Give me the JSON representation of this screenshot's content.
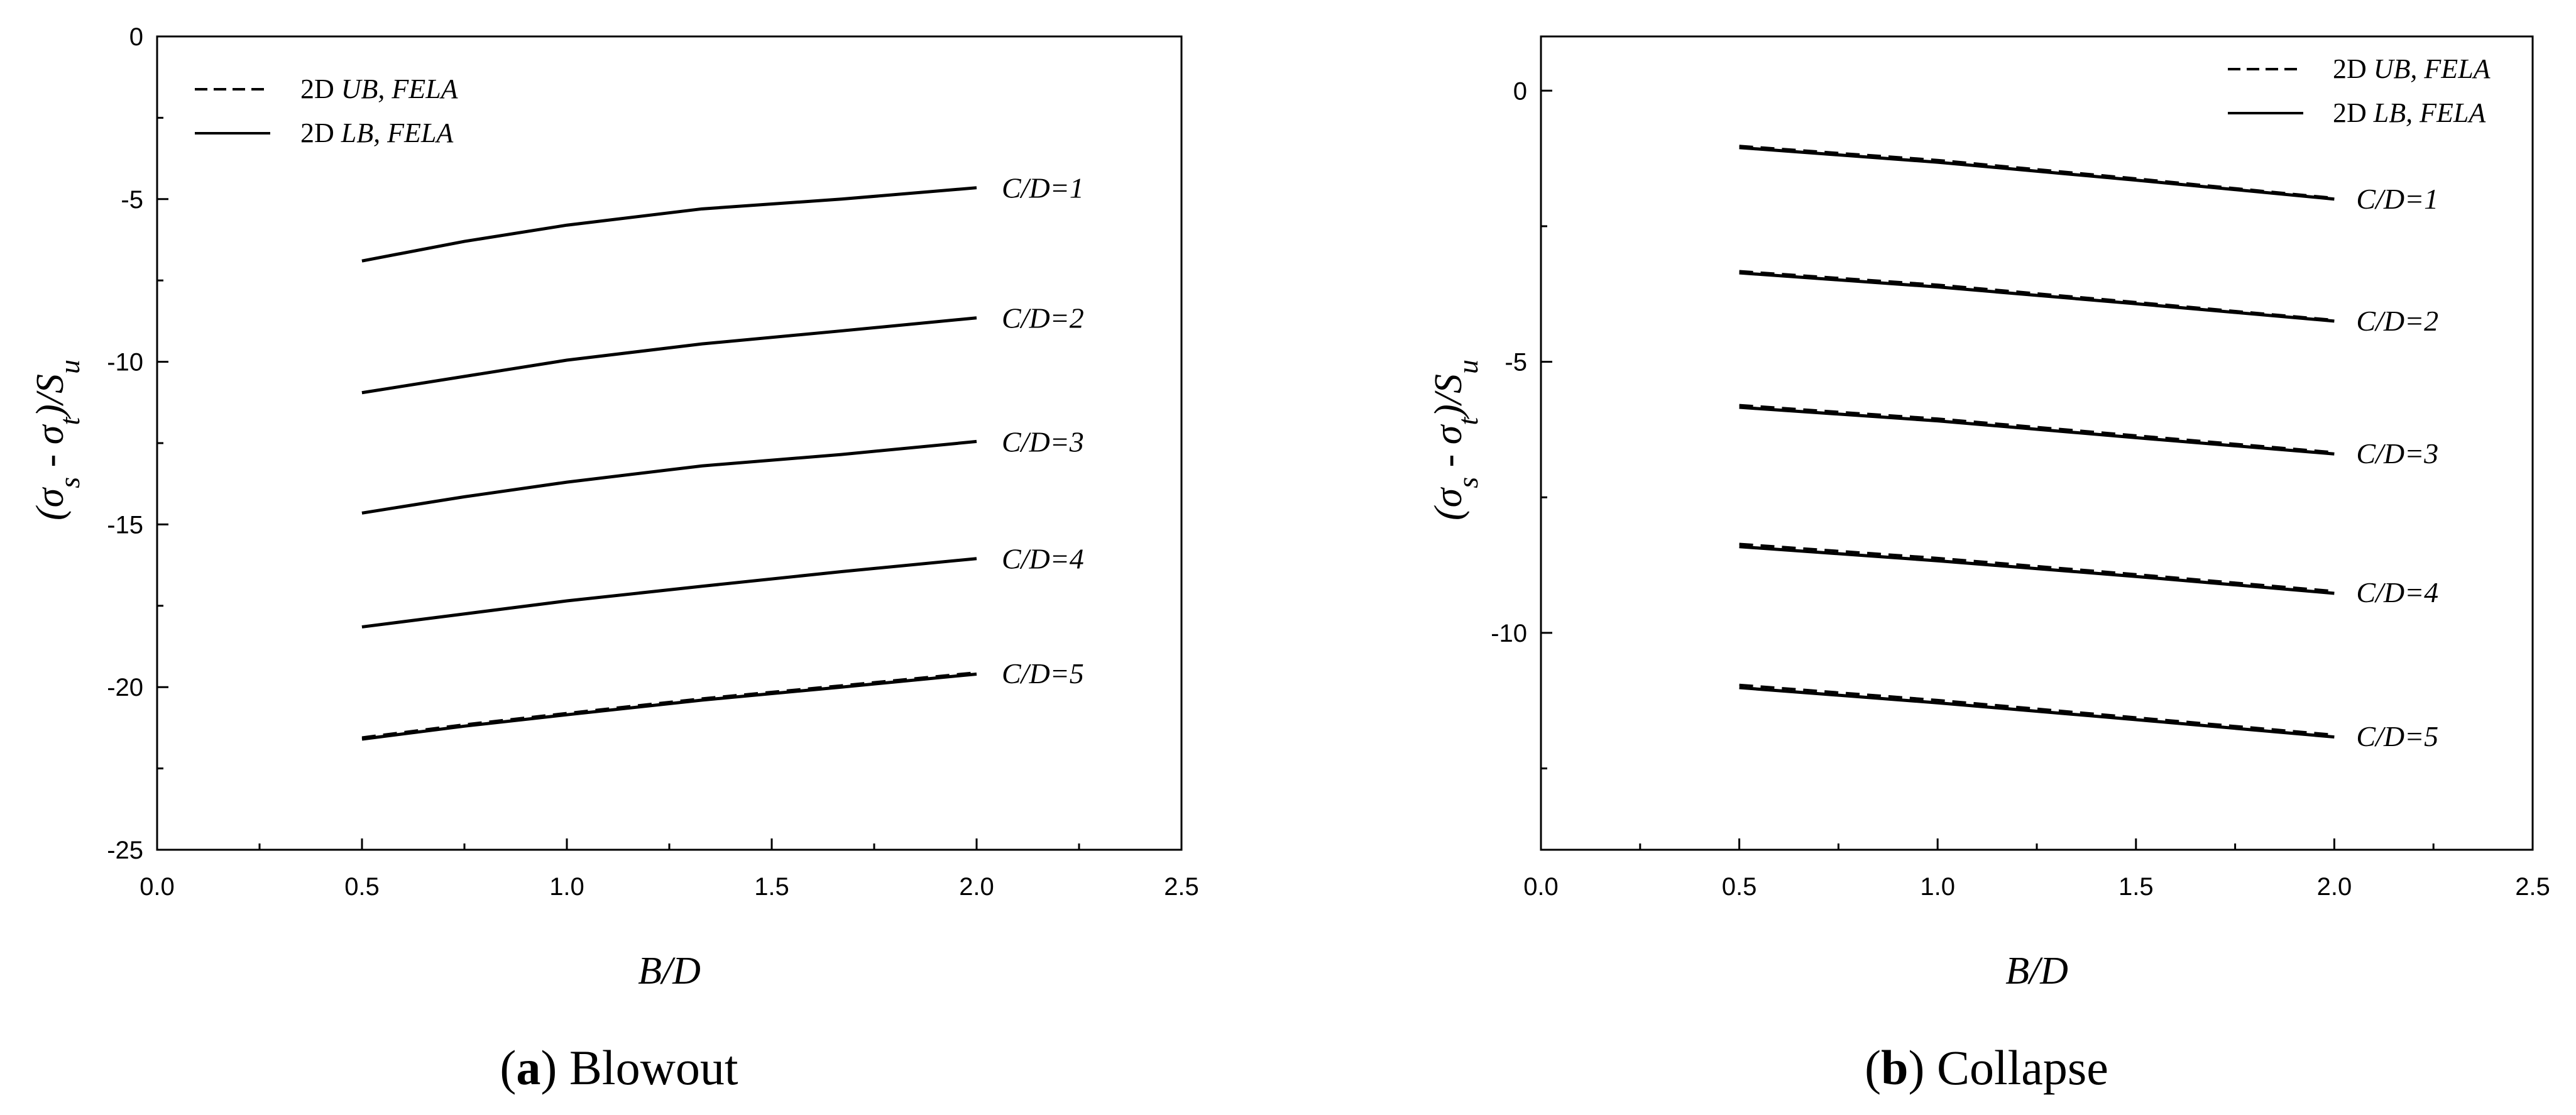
{
  "chart_data": [
    {
      "type": "line",
      "caption": {
        "letter": "a",
        "text": " Blowout"
      },
      "xlabel": "B/D",
      "ylabel": "(σs - σt)/Su",
      "xlim": [
        0.0,
        2.5
      ],
      "ylim": [
        -25,
        0
      ],
      "xticks": [
        0.0,
        0.5,
        1.0,
        1.5,
        2.0,
        2.5
      ],
      "xtick_labels": [
        "0.0",
        "0.5",
        "1.0",
        "1.5",
        "2.0",
        "2.5"
      ],
      "yticks": [
        0,
        -5,
        -10,
        -15,
        -20,
        -25
      ],
      "ytick_labels": [
        "0",
        "-5",
        "-10",
        "-15",
        "-20",
        "-25"
      ],
      "grid": false,
      "legend": {
        "placement": "top-left",
        "entries": [
          {
            "style": "dashed",
            "prefix": "2D ",
            "name": "UB, FELA"
          },
          {
            "style": "solid",
            "prefix": "2D ",
            "name": "LB, FELA"
          }
        ]
      },
      "x": [
        0.5,
        0.75,
        1.0,
        1.33,
        1.67,
        2.0
      ],
      "series": [
        {
          "label": "C/D=1",
          "ub": [
            -6.9,
            -6.3,
            -5.8,
            -5.3,
            -5.0,
            -4.65
          ],
          "lb": [
            -6.9,
            -6.3,
            -5.8,
            -5.3,
            -5.0,
            -4.65
          ]
        },
        {
          "label": "C/D=2",
          "ub": [
            -10.95,
            -10.45,
            -9.95,
            -9.45,
            -9.05,
            -8.65
          ],
          "lb": [
            -10.95,
            -10.45,
            -9.95,
            -9.45,
            -9.05,
            -8.65
          ]
        },
        {
          "label": "C/D=3",
          "ub": [
            -14.65,
            -14.15,
            -13.7,
            -13.2,
            -12.85,
            -12.45
          ],
          "lb": [
            -14.65,
            -14.15,
            -13.7,
            -13.2,
            -12.85,
            -12.45
          ]
        },
        {
          "label": "C/D=4",
          "ub": [
            -18.15,
            -17.75,
            -17.35,
            -16.9,
            -16.45,
            -16.05
          ],
          "lb": [
            -18.15,
            -17.75,
            -17.35,
            -16.9,
            -16.45,
            -16.05
          ]
        },
        {
          "label": "C/D=5",
          "ub": [
            -21.55,
            -21.15,
            -20.8,
            -20.35,
            -19.95,
            -19.55
          ],
          "lb": [
            -21.6,
            -21.2,
            -20.85,
            -20.4,
            -20.0,
            -19.6
          ]
        }
      ]
    },
    {
      "type": "line",
      "caption": {
        "letter": "b",
        "text": " Collapse"
      },
      "xlabel": "B/D",
      "ylabel": "(σs - σt)/Su",
      "xlim": [
        0.0,
        2.5
      ],
      "ylim": [
        -14,
        1
      ],
      "xticks": [
        0.0,
        0.5,
        1.0,
        1.5,
        2.0,
        2.5
      ],
      "xtick_labels": [
        "0.0",
        "0.5",
        "1.0",
        "1.5",
        "2.0",
        "2.5"
      ],
      "yticks": [
        0,
        -5,
        -10
      ],
      "ytick_labels": [
        "0",
        "-5",
        "-10"
      ],
      "grid": false,
      "legend": {
        "placement": "top-right",
        "entries": [
          {
            "style": "dashed",
            "prefix": "2D ",
            "name": "UB, FELA"
          },
          {
            "style": "solid",
            "prefix": "2D ",
            "name": "LB, FELA"
          }
        ]
      },
      "x": [
        0.5,
        1.0,
        1.5,
        2.0
      ],
      "series": [
        {
          "label": "C/D=1",
          "ub": [
            -1.02,
            -1.28,
            -1.62,
            -1.98
          ],
          "lb": [
            -1.05,
            -1.32,
            -1.65,
            -2.0
          ]
        },
        {
          "label": "C/D=2",
          "ub": [
            -3.33,
            -3.58,
            -3.9,
            -4.23
          ],
          "lb": [
            -3.36,
            -3.62,
            -3.93,
            -4.25
          ]
        },
        {
          "label": "C/D=3",
          "ub": [
            -5.8,
            -6.05,
            -6.36,
            -6.67
          ],
          "lb": [
            -5.84,
            -6.09,
            -6.4,
            -6.7
          ]
        },
        {
          "label": "C/D=4",
          "ub": [
            -8.36,
            -8.62,
            -8.92,
            -9.23
          ],
          "lb": [
            -8.41,
            -8.67,
            -8.96,
            -9.27
          ]
        },
        {
          "label": "C/D=5",
          "ub": [
            -10.96,
            -11.24,
            -11.56,
            -11.88
          ],
          "lb": [
            -11.01,
            -11.29,
            -11.6,
            -11.92
          ]
        }
      ]
    }
  ]
}
